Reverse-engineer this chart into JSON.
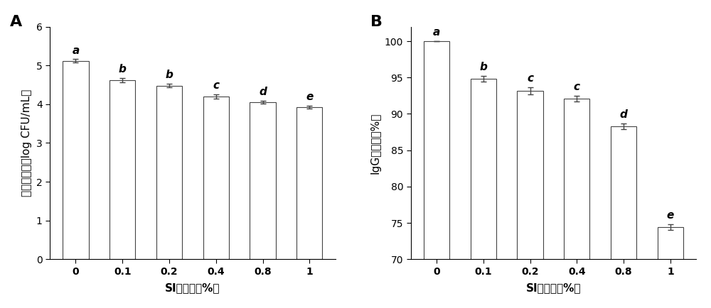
{
  "chart_A": {
    "categories": [
      "0",
      "0.1",
      "0.2",
      "0.4",
      "0.8",
      "1"
    ],
    "values": [
      5.12,
      4.62,
      4.48,
      4.2,
      4.05,
      3.92
    ],
    "errors": [
      0.04,
      0.05,
      0.05,
      0.05,
      0.04,
      0.04
    ],
    "letters": [
      "a",
      "b",
      "b",
      "c",
      "d",
      "e"
    ],
    "ylabel": "微生物数量（log CFU/mL）",
    "xlabel": "SI添加量（%）",
    "panel_label": "A",
    "ylim": [
      0,
      6
    ],
    "yticks": [
      0,
      1,
      2,
      3,
      4,
      5,
      6
    ]
  },
  "chart_B": {
    "categories": [
      "0",
      "0.1",
      "0.2",
      "0.4",
      "0.8",
      "1"
    ],
    "values": [
      100.0,
      94.8,
      93.2,
      92.1,
      88.3,
      74.4
    ],
    "errors": [
      0.0,
      0.4,
      0.5,
      0.4,
      0.4,
      0.4
    ],
    "letters": [
      "a",
      "b",
      "c",
      "c",
      "d",
      "e"
    ],
    "ylabel": "IgG保留率（%）",
    "xlabel": "SI添加量（%）",
    "panel_label": "B",
    "ylim": [
      70,
      102
    ],
    "yticks": [
      70,
      75,
      80,
      85,
      90,
      95,
      100
    ]
  },
  "bar_color": "#ffffff",
  "bar_edgecolor": "#444444",
  "bar_width": 0.55,
  "error_color": "#444444",
  "letter_fontsize": 11,
  "axis_label_fontsize": 11,
  "tick_fontsize": 10,
  "panel_label_fontsize": 16,
  "background_color": "#ffffff"
}
